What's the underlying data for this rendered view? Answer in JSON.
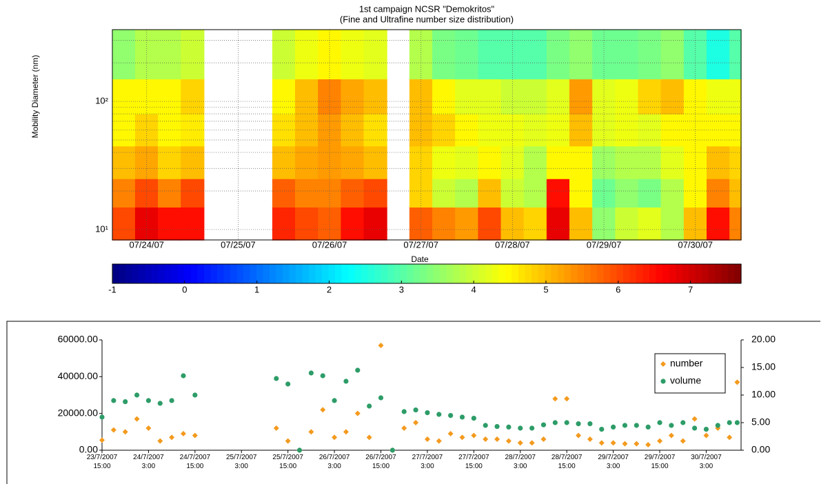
{
  "chart_data": [
    {
      "type": "heatmap",
      "title": "1st campaign NCSR \"Demokritos\"",
      "subtitle": "(Fine and Ultrafine number size distribution)",
      "x_label": "Date",
      "y_label": "Mobility Diameter (nm)",
      "log_y": true,
      "grid": true,
      "colormap": "jet",
      "xlim": [
        -0.375,
        6.5
      ],
      "ylim": [
        8.3,
        363
      ],
      "xticks": [
        {
          "value": 0,
          "label": "07/24/07"
        },
        {
          "value": 1,
          "label": "07/25/07"
        },
        {
          "value": 2,
          "label": "07/26/07"
        },
        {
          "value": 3,
          "label": "07/27/07"
        },
        {
          "value": 4,
          "label": "07/28/07"
        },
        {
          "value": 5,
          "label": "07/29/07"
        },
        {
          "value": 6,
          "label": "07/30/07"
        }
      ],
      "yticks": [
        {
          "value": 10,
          "label": "10¹"
        },
        {
          "value": 100,
          "label": "10²"
        }
      ],
      "minor_yticks": [
        20,
        30,
        40,
        50,
        60,
        70,
        80,
        90,
        200,
        300
      ],
      "x": [
        -0.375,
        -0.125,
        0.125,
        0.375,
        0.625,
        0.875,
        1.125,
        1.375,
        1.625,
        1.875,
        2.125,
        2.375,
        2.625,
        2.875,
        3.125,
        3.375,
        3.625,
        3.875,
        4.125,
        4.375,
        4.625,
        4.875,
        5.125,
        5.375,
        5.625,
        5.875,
        6.125,
        6.375
      ],
      "y_edges": [
        8.3,
        15,
        25,
        45,
        80,
        150,
        363
      ],
      "z": [
        [
          6,
          6.8,
          6.5,
          6.5,
          null,
          null,
          null,
          6.3,
          6,
          5.8,
          6.5,
          6.8,
          null,
          5.8,
          5.5,
          5.3,
          6,
          5,
          4.8,
          6.8,
          5,
          3.5,
          4,
          4.2,
          3.8,
          5,
          6.5,
          5.5
        ],
        [
          5.5,
          6,
          5.5,
          6,
          null,
          null,
          null,
          5.8,
          5.5,
          5.5,
          5.8,
          6,
          null,
          4.8,
          4,
          3.8,
          5,
          4,
          3.8,
          6.5,
          4.5,
          3.2,
          3.5,
          3.3,
          3.8,
          4.5,
          5.5,
          5
        ],
        [
          5,
          5.2,
          4.8,
          5,
          null,
          null,
          null,
          5,
          5.2,
          5.3,
          5.2,
          5,
          null,
          4.8,
          4.3,
          4.2,
          4.5,
          4.2,
          3.8,
          4.5,
          4.5,
          3.6,
          3.8,
          3.8,
          4.2,
          4.5,
          5,
          4.8
        ],
        [
          4.5,
          4.8,
          4.5,
          4.6,
          null,
          null,
          null,
          4.7,
          5,
          5.3,
          5,
          4.7,
          null,
          5,
          4.8,
          4.5,
          4.3,
          4.3,
          4.2,
          4.3,
          5,
          4.2,
          4.3,
          4.2,
          4.5,
          4.5,
          4.5,
          4.5
        ],
        [
          4.5,
          4.5,
          4.5,
          4.8,
          null,
          null,
          null,
          4.5,
          5,
          5.5,
          5.2,
          5,
          null,
          5,
          4.5,
          4.2,
          4.2,
          4,
          4,
          4.2,
          5.3,
          4.2,
          4.3,
          4.8,
          5,
          4.5,
          4.3,
          4.3
        ],
        [
          3.5,
          3.8,
          3.8,
          4,
          null,
          null,
          null,
          4,
          4.3,
          4.5,
          4.3,
          4.2,
          null,
          3.8,
          3.3,
          3.2,
          3,
          3,
          3,
          3.3,
          3.5,
          3.2,
          3.2,
          3.3,
          3.5,
          3,
          2.5,
          3
        ]
      ],
      "colorbar": {
        "clim": [
          -1,
          7.7
        ],
        "ticks": [
          -1,
          0,
          1,
          2,
          3,
          4,
          5,
          6,
          7
        ]
      }
    },
    {
      "type": "scatter",
      "legend": "upper right",
      "xlim": [
        0,
        165
      ],
      "ylim": [
        0,
        60000
      ],
      "y2lim": [
        0,
        20
      ],
      "yticks": [
        {
          "value": 0,
          "label": "0.00"
        },
        {
          "value": 20000,
          "label": "20000.00"
        },
        {
          "value": 40000,
          "label": "40000.00"
        },
        {
          "value": 60000,
          "label": "60000.00"
        }
      ],
      "y2ticks": [
        {
          "value": 0,
          "label": "0.00"
        },
        {
          "value": 5,
          "label": "5.00"
        },
        {
          "value": 10,
          "label": "10.00"
        },
        {
          "value": 15,
          "label": "15.00"
        },
        {
          "value": 20,
          "label": "20.00"
        }
      ],
      "xticks": [
        {
          "value": 0,
          "label": "23/7/2007\n15:00"
        },
        {
          "value": 12,
          "label": "24/7/2007\n3:00"
        },
        {
          "value": 24,
          "label": "24/7/2007\n15:00"
        },
        {
          "value": 36,
          "label": "25/7/2007\n3:00"
        },
        {
          "value": 48,
          "label": "25/7/2007\n15:00"
        },
        {
          "value": 60,
          "label": "26/7/2007\n3:00"
        },
        {
          "value": 72,
          "label": "26/7/2007\n15:00"
        },
        {
          "value": 84,
          "label": "27/7/2007\n3:00"
        },
        {
          "value": 96,
          "label": "27/7/2007\n15:00"
        },
        {
          "value": 108,
          "label": "28/7/2007\n3:00"
        },
        {
          "value": 120,
          "label": "28/7/2007\n15:00"
        },
        {
          "value": 132,
          "label": "29/7/2007\n3:00"
        },
        {
          "value": 144,
          "label": "29/7/2007\n15:00"
        },
        {
          "value": 156,
          "label": "30/7/2007\n3:00"
        }
      ],
      "x": [
        0,
        3,
        6,
        9,
        12,
        15,
        18,
        21,
        24,
        27,
        30,
        33,
        36,
        39,
        42,
        45,
        48,
        51,
        54,
        57,
        60,
        63,
        66,
        69,
        72,
        75,
        78,
        81,
        84,
        87,
        90,
        93,
        96,
        99,
        102,
        105,
        108,
        111,
        114,
        117,
        120,
        123,
        126,
        129,
        132,
        135,
        138,
        141,
        144,
        147,
        150,
        153,
        156,
        159,
        162,
        164
      ],
      "series": [
        {
          "name": "number",
          "color": "#f39a1e",
          "marker": "diamond",
          "values": [
            5500,
            11000,
            10000,
            17000,
            12000,
            5000,
            7000,
            9000,
            8000,
            null,
            null,
            null,
            null,
            null,
            null,
            12000,
            5000,
            0,
            10000,
            22000,
            7000,
            10000,
            20000,
            7000,
            57000,
            0,
            12000,
            15000,
            6000,
            5000,
            9000,
            7000,
            8000,
            6000,
            6000,
            5000,
            4000,
            4000,
            6000,
            28000,
            28000,
            8000,
            6000,
            4000,
            4000,
            3500,
            3500,
            3000,
            5000,
            8000,
            5000,
            17000,
            8000,
            12000,
            7000,
            37000
          ]
        },
        {
          "name": "volume",
          "color": "#2e9c68",
          "marker": "circle",
          "axis": "y2",
          "values": [
            6,
            9,
            8.8,
            10,
            9,
            8.5,
            9,
            13.5,
            10,
            null,
            null,
            null,
            null,
            null,
            null,
            13,
            12,
            0,
            14,
            13.5,
            9,
            12.5,
            14.5,
            8,
            9.5,
            0,
            7,
            7.3,
            6.8,
            6.5,
            6.3,
            6,
            5.8,
            4.5,
            4.3,
            4.2,
            4,
            4,
            4.6,
            5,
            5,
            4.8,
            4.8,
            3.8,
            4.2,
            4.5,
            4.5,
            4.2,
            5,
            4.5,
            5,
            4,
            3.8,
            4.5,
            5,
            5
          ]
        }
      ]
    }
  ]
}
